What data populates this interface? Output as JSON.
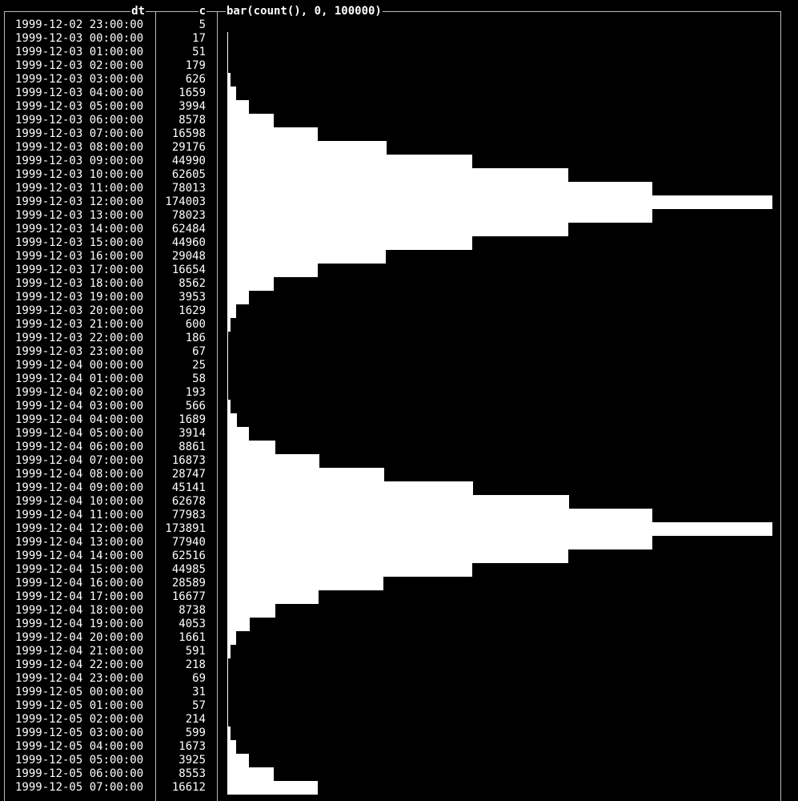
{
  "header": {
    "dt": "dt",
    "c": "c",
    "bar": "bar(count(), 0, 100000)"
  },
  "xlim": [
    0,
    100000
  ],
  "rows": [
    [
      "1999-12-02 23:00:00",
      5
    ],
    [
      "1999-12-03 00:00:00",
      17
    ],
    [
      "1999-12-03 01:00:00",
      51
    ],
    [
      "1999-12-03 02:00:00",
      179
    ],
    [
      "1999-12-03 03:00:00",
      626
    ],
    [
      "1999-12-03 04:00:00",
      1659
    ],
    [
      "1999-12-03 05:00:00",
      3994
    ],
    [
      "1999-12-03 06:00:00",
      8578
    ],
    [
      "1999-12-03 07:00:00",
      16598
    ],
    [
      "1999-12-03 08:00:00",
      29176
    ],
    [
      "1999-12-03 09:00:00",
      44990
    ],
    [
      "1999-12-03 10:00:00",
      62605
    ],
    [
      "1999-12-03 11:00:00",
      78013
    ],
    [
      "1999-12-03 12:00:00",
      174003
    ],
    [
      "1999-12-03 13:00:00",
      78023
    ],
    [
      "1999-12-03 14:00:00",
      62484
    ],
    [
      "1999-12-03 15:00:00",
      44960
    ],
    [
      "1999-12-03 16:00:00",
      29048
    ],
    [
      "1999-12-03 17:00:00",
      16654
    ],
    [
      "1999-12-03 18:00:00",
      8562
    ],
    [
      "1999-12-03 19:00:00",
      3953
    ],
    [
      "1999-12-03 20:00:00",
      1629
    ],
    [
      "1999-12-03 21:00:00",
      600
    ],
    [
      "1999-12-03 22:00:00",
      186
    ],
    [
      "1999-12-03 23:00:00",
      67
    ],
    [
      "1999-12-04 00:00:00",
      25
    ],
    [
      "1999-12-04 01:00:00",
      58
    ],
    [
      "1999-12-04 02:00:00",
      193
    ],
    [
      "1999-12-04 03:00:00",
      566
    ],
    [
      "1999-12-04 04:00:00",
      1689
    ],
    [
      "1999-12-04 05:00:00",
      3914
    ],
    [
      "1999-12-04 06:00:00",
      8861
    ],
    [
      "1999-12-04 07:00:00",
      16873
    ],
    [
      "1999-12-04 08:00:00",
      28747
    ],
    [
      "1999-12-04 09:00:00",
      45141
    ],
    [
      "1999-12-04 10:00:00",
      62678
    ],
    [
      "1999-12-04 11:00:00",
      77983
    ],
    [
      "1999-12-04 12:00:00",
      173891
    ],
    [
      "1999-12-04 13:00:00",
      77940
    ],
    [
      "1999-12-04 14:00:00",
      62516
    ],
    [
      "1999-12-04 15:00:00",
      44985
    ],
    [
      "1999-12-04 16:00:00",
      28589
    ],
    [
      "1999-12-04 17:00:00",
      16677
    ],
    [
      "1999-12-04 18:00:00",
      8738
    ],
    [
      "1999-12-04 19:00:00",
      4053
    ],
    [
      "1999-12-04 20:00:00",
      1661
    ],
    [
      "1999-12-04 21:00:00",
      591
    ],
    [
      "1999-12-04 22:00:00",
      218
    ],
    [
      "1999-12-04 23:00:00",
      69
    ],
    [
      "1999-12-05 00:00:00",
      31
    ],
    [
      "1999-12-05 01:00:00",
      57
    ],
    [
      "1999-12-05 02:00:00",
      214
    ],
    [
      "1999-12-05 03:00:00",
      599
    ],
    [
      "1999-12-05 04:00:00",
      1673
    ],
    [
      "1999-12-05 05:00:00",
      3925
    ],
    [
      "1999-12-05 06:00:00",
      8553
    ],
    [
      "1999-12-05 07:00:00",
      16612
    ]
  ]
}
